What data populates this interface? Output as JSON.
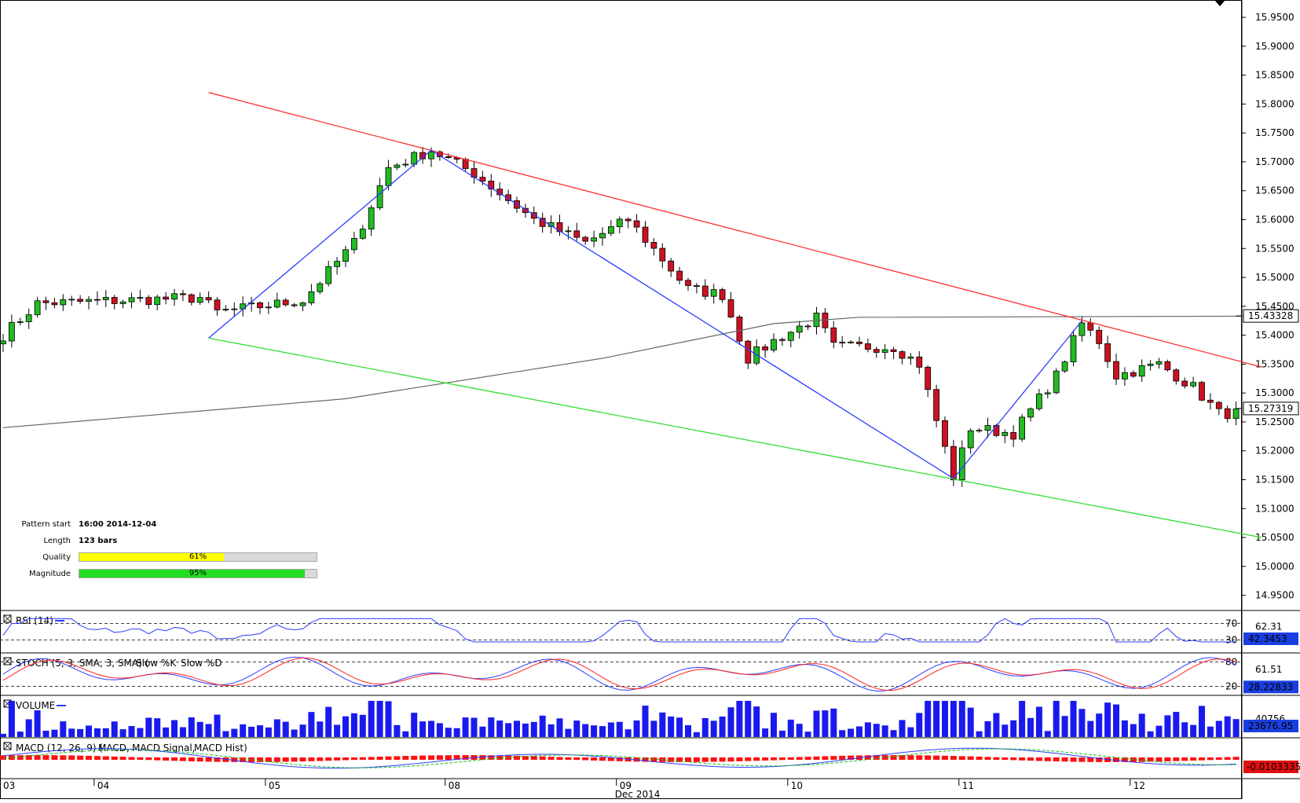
{
  "chart_data": {
    "type": "candlestick",
    "price_axis": [
      "15.9500",
      "15.9000",
      "15.8500",
      "15.8000",
      "15.7500",
      "15.7000",
      "15.6500",
      "15.6000",
      "15.5500",
      "15.5000",
      "15.4500",
      "15.4000",
      "15.3500",
      "15.3000",
      "15.2500",
      "15.2000",
      "15.1500",
      "15.1000",
      "15.0500",
      "15.0000",
      "14.9500"
    ],
    "ylim": [
      14.925,
      15.98
    ],
    "price_marks": [
      {
        "label": "15.43328",
        "value": 15.43328,
        "bg": "#ffffff",
        "fg": "#000000"
      },
      {
        "label": "15.27319",
        "value": 15.27319,
        "bg": "#ffffff",
        "fg": "#000000"
      }
    ],
    "x_ticks": [
      {
        "label": "03",
        "bar": 0
      },
      {
        "label": "04",
        "bar": 11
      },
      {
        "label": "05",
        "bar": 31
      },
      {
        "label": "08",
        "bar": 52
      },
      {
        "label": "09",
        "bar": 72
      },
      {
        "label": "10",
        "bar": 92
      },
      {
        "label": "11",
        "bar": 112
      },
      {
        "label": "12",
        "bar": 132
      }
    ],
    "month_label": "Dec 2014",
    "pattern_lines": {
      "resistance": {
        "from": [
          24,
          15.82
        ],
        "to": [
          147,
          15.345
        ],
        "color": "#ff3030"
      },
      "support": {
        "from": [
          24,
          15.395
        ],
        "to": [
          147,
          15.05
        ],
        "color": "#33dd33"
      },
      "zigzag": {
        "points": [
          [
            24,
            15.395
          ],
          [
            50,
            15.72
          ],
          [
            111,
            15.152
          ],
          [
            126,
            15.425
          ]
        ],
        "color": "#2a3cff"
      },
      "moving_average": {
        "points": [
          [
            0,
            15.24
          ],
          [
            40,
            15.29
          ],
          [
            70,
            15.36
          ],
          [
            90,
            15.42
          ],
          [
            100,
            15.431
          ],
          [
            147,
            15.433
          ]
        ],
        "color": "#666666"
      }
    },
    "pattern_info": {
      "pattern_start_label": "Pattern start",
      "pattern_start_value": "16:00 2014-12-04",
      "length_label": "Length",
      "length_value": "123 bars",
      "quality_label": "Quality",
      "quality_value": "61%",
      "quality_pct": 61,
      "magnitude_label": "Magnitude",
      "magnitude_value": "95%",
      "magnitude_pct": 95
    },
    "indicators": {
      "rsi": {
        "title": "RSI (14)",
        "levels": [
          "70",
          "30"
        ],
        "current": "62.31",
        "value_box": "42.3453"
      },
      "stoch": {
        "title": "STOCH (5, 3, SMA, 3, SMA)",
        "k_label": "Slow %K",
        "d_label": "Slow %D",
        "levels": [
          "80",
          "20"
        ],
        "current": "61.51",
        "value_box": "28.22833"
      },
      "volume": {
        "title": "VOLUME",
        "current": "40756",
        "value_box": "23676.95"
      },
      "macd": {
        "title": "MACD (12, 26, 9)",
        "macd_label": "MACD",
        "signal_label": "MACD Signal",
        "hist_label": "MACD Hist",
        "value_box": "-0.0103335"
      }
    },
    "colors": {
      "up": "#22bb22",
      "down": "#cc1122",
      "rsi": "#2a3cff",
      "stoch_d": "#ff2020",
      "volume": "#1a1aee",
      "macd_signal": "#22bb22",
      "macd_hist": "#ff1010",
      "value_box": "#1a3fe0"
    }
  }
}
